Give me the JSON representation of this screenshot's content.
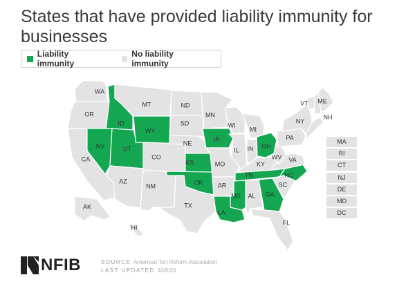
{
  "title": "States that have provided liability immunity for businesses",
  "legend": {
    "immunity_label": "Liability immunity",
    "no_immunity_label": "No liability immunity"
  },
  "colors": {
    "immunity": "#14a651",
    "no_immunity": "#e3e3e3",
    "border": "#ffffff"
  },
  "states": {
    "WA": "no",
    "OR": "no",
    "CA": "no",
    "ID": "yes",
    "NV": "yes",
    "UT": "yes",
    "AZ": "no",
    "MT": "no",
    "WY": "yes",
    "CO": "no",
    "NM": "no",
    "ND": "no",
    "SD": "no",
    "NE": "no",
    "KS": "yes",
    "OK": "yes",
    "TX": "no",
    "MN": "no",
    "IA": "yes",
    "MO": "no",
    "AR": "no",
    "LA": "yes",
    "WI": "no",
    "IL": "no",
    "MS": "yes",
    "MI": "no",
    "IN": "no",
    "KY": "no",
    "TN": "yes",
    "AL": "no",
    "OH": "yes",
    "GA": "yes",
    "FL": "no",
    "SC": "no",
    "NC": "yes",
    "WV": "no",
    "VA": "no",
    "PA": "no",
    "NY": "no",
    "VT": "no",
    "NH": "no",
    "ME": "no",
    "AK": "no",
    "HI": "no"
  },
  "small_states": [
    "MA",
    "RI",
    "CT",
    "NJ",
    "DE",
    "MD",
    "DC"
  ],
  "footer": {
    "logo": "NFIB",
    "source_label": "SOURCE",
    "source_value": "American Tort Reform Association",
    "updated_label": "LAST UPDATED",
    "updated_value": "10/5/20"
  }
}
